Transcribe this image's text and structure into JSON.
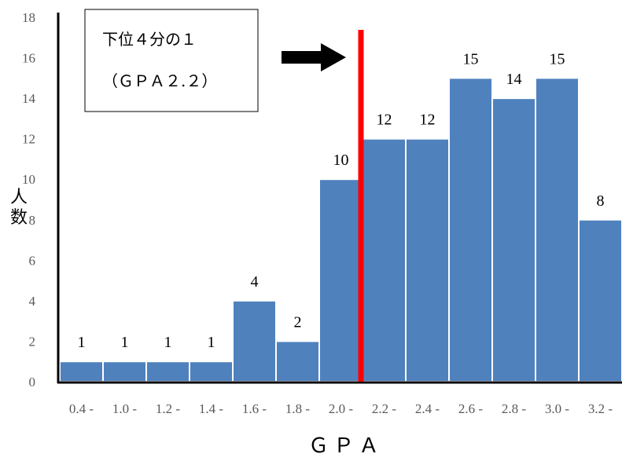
{
  "chart_data": {
    "type": "bar",
    "categories": [
      "0.4 -",
      "1.0 -",
      "1.2 -",
      "1.4 -",
      "1.6 -",
      "1.8 -",
      "2.0 -",
      "2.2 -",
      "2.4 -",
      "2.6 -",
      "2.8 -",
      "3.0 -",
      "3.2 -"
    ],
    "values": [
      1,
      1,
      1,
      1,
      4,
      2,
      10,
      12,
      12,
      15,
      14,
      15,
      8
    ],
    "data_labels": [
      "1",
      "1",
      "1",
      "1",
      "4",
      "2",
      "10",
      "12",
      "12",
      "15",
      "14",
      "15",
      "8"
    ],
    "xlabel": "ＧＰＡ",
    "ylabel_line1": "人",
    "ylabel_line2": "数",
    "ylim": [
      0,
      18
    ],
    "yticks": [
      0,
      2,
      4,
      6,
      8,
      10,
      12,
      14,
      16,
      18
    ],
    "grid": false,
    "bar_color": "#4f81bd",
    "threshold_line": {
      "after_category_index": 6,
      "color": "#ff0000"
    },
    "annotation": {
      "line1": "下位４分の１",
      "line2": "（ＧＰＡ２.２）"
    }
  }
}
